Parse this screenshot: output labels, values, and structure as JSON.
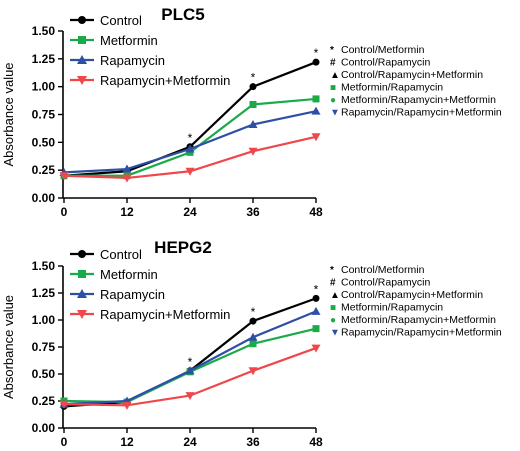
{
  "chart_data": [
    {
      "type": "line",
      "title": "PLC5",
      "xlabel": "",
      "ylabel": "Absorbance value",
      "x": [
        0,
        12,
        24,
        36,
        48
      ],
      "xticks": [
        "0",
        "12",
        "24",
        "36",
        "48"
      ],
      "yticks": [
        "0.00",
        "0.25",
        "0.50",
        "0.75",
        "1.00",
        "1.25",
        "1.50"
      ],
      "ylim": [
        0,
        1.5
      ],
      "grid": false,
      "legend_position": "top-left",
      "series": [
        {
          "name": "Control",
          "marker": "circle",
          "color": "#000000",
          "values": [
            0.2,
            0.24,
            0.46,
            1.0,
            1.22
          ]
        },
        {
          "name": "Metformin",
          "marker": "square",
          "color": "#1aab48",
          "values": [
            0.2,
            0.2,
            0.41,
            0.84,
            0.89
          ]
        },
        {
          "name": "Rapamycin",
          "marker": "triangle-up",
          "color": "#2e4fa6",
          "values": [
            0.23,
            0.26,
            0.44,
            0.66,
            0.78
          ]
        },
        {
          "name": "Rapamycin+Metformin",
          "marker": "triangle-down",
          "color": "#f0474b",
          "values": [
            0.2,
            0.18,
            0.24,
            0.42,
            0.55
          ]
        }
      ],
      "significance_legend": [
        {
          "symbol": "*",
          "label": "Control/Metformin",
          "color": "#000000"
        },
        {
          "symbol": "#",
          "label": "Control/Rapamycin",
          "color": "#000000"
        },
        {
          "symbol": "▲",
          "label": "Control/Rapamycin+Metformin",
          "color": "#000000"
        },
        {
          "symbol": "■",
          "label": "Metformin/Rapamycin",
          "color": "#1aab48"
        },
        {
          "symbol": "●",
          "label": "Metformin/Rapamycin+Metformin",
          "color": "#1aab48"
        },
        {
          "symbol": "▼",
          "label": "Rapamycin/Rapamycin+Metformin",
          "color": "#2e4fa6"
        }
      ]
    },
    {
      "type": "line",
      "title": "HEPG2",
      "xlabel": "",
      "ylabel": "Absorbance value",
      "x": [
        0,
        12,
        24,
        36,
        48
      ],
      "xticks": [
        "0",
        "12",
        "24",
        "36",
        "48"
      ],
      "yticks": [
        "0.00",
        "0.25",
        "0.50",
        "0.75",
        "1.00",
        "1.25",
        "1.50"
      ],
      "ylim": [
        0,
        1.5
      ],
      "grid": false,
      "legend_position": "top-left",
      "series": [
        {
          "name": "Control",
          "marker": "circle",
          "color": "#000000",
          "values": [
            0.2,
            0.24,
            0.53,
            0.99,
            1.2
          ]
        },
        {
          "name": "Metformin",
          "marker": "square",
          "color": "#1aab48",
          "values": [
            0.25,
            0.24,
            0.52,
            0.78,
            0.92
          ]
        },
        {
          "name": "Rapamycin",
          "marker": "triangle-up",
          "color": "#2e4fa6",
          "values": [
            0.22,
            0.25,
            0.53,
            0.84,
            1.08
          ]
        },
        {
          "name": "Rapamycin+Metformin",
          "marker": "triangle-down",
          "color": "#f0474b",
          "values": [
            0.22,
            0.21,
            0.3,
            0.53,
            0.74
          ]
        }
      ],
      "significance_legend": [
        {
          "symbol": "*",
          "label": "Control/Metformin",
          "color": "#000000"
        },
        {
          "symbol": "#",
          "label": "Control/Rapamycin",
          "color": "#000000"
        },
        {
          "symbol": "▲",
          "label": "Control/Rapamycin+Metformin",
          "color": "#000000"
        },
        {
          "symbol": "■",
          "label": "Metformin/Rapamycin",
          "color": "#1aab48"
        },
        {
          "symbol": "●",
          "label": "Metformin/Rapamycin+Metformin",
          "color": "#1aab48"
        },
        {
          "symbol": "▼",
          "label": "Rapamycin/Rapamycin+Metformin",
          "color": "#2e4fa6"
        }
      ]
    }
  ]
}
